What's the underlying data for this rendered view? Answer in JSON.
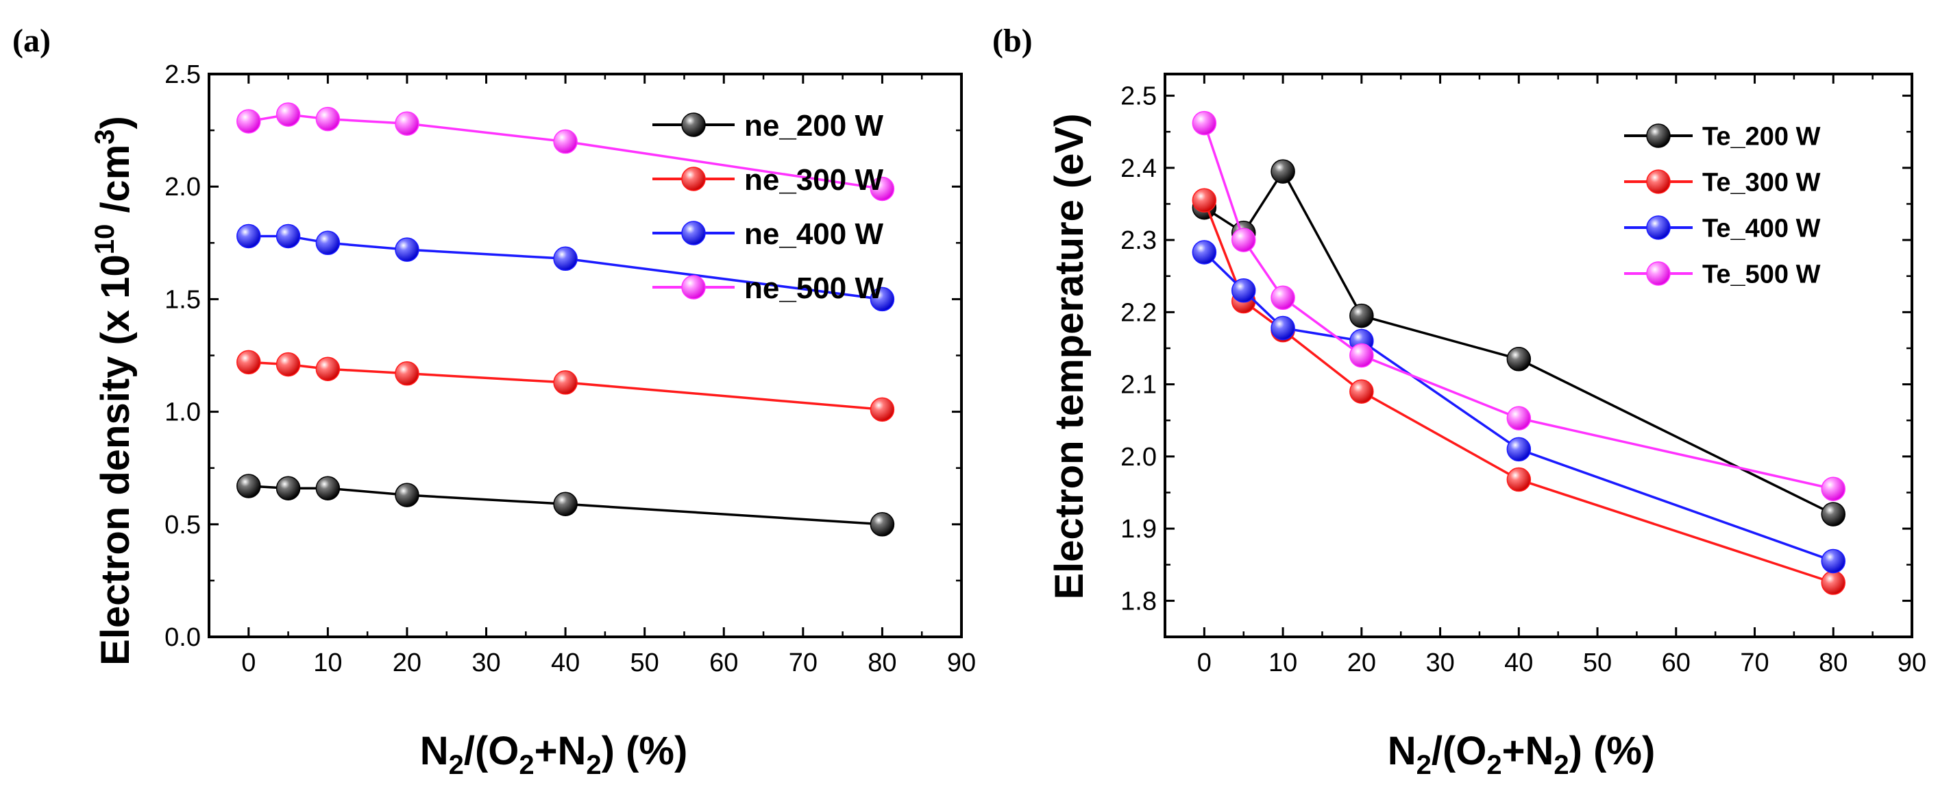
{
  "colors": {
    "black": "#000000",
    "red": "#ff1a1a",
    "blue": "#1a1aff",
    "magenta": "#ff33ff"
  },
  "chart_data": [
    {
      "type": "line",
      "panel_label": "(a)",
      "title": "",
      "xlabel": {
        "main": "N",
        "s1": "2",
        "m1": "/(O",
        "s2": "2",
        "m2": "+N",
        "s3": "2",
        "m3": ") (%)"
      },
      "ylabel": {
        "main": "Electron density (x 10",
        "sup1": "10",
        "mid": " /cm",
        "sup2": "3",
        "end": ")"
      },
      "xlim": [
        -5,
        90
      ],
      "ylim": [
        0,
        2.5
      ],
      "xticks": [
        0,
        10,
        20,
        30,
        40,
        50,
        60,
        70,
        80,
        90
      ],
      "yticks": [
        0.0,
        0.5,
        1.0,
        1.5,
        2.0,
        2.5
      ],
      "ytick_labels": [
        "0.0",
        "0.5",
        "1.0",
        "1.5",
        "2.0",
        "2.5"
      ],
      "legend_position": "top-right",
      "x": [
        0,
        5,
        10,
        20,
        40,
        80
      ],
      "series": [
        {
          "name": "ne_200 W",
          "color": "#000000",
          "values": [
            0.67,
            0.66,
            0.66,
            0.63,
            0.59,
            0.5
          ]
        },
        {
          "name": "ne_300 W",
          "color": "#ff1a1a",
          "values": [
            1.22,
            1.21,
            1.19,
            1.17,
            1.13,
            1.01
          ]
        },
        {
          "name": "ne_400 W",
          "color": "#1a1aff",
          "values": [
            1.78,
            1.78,
            1.75,
            1.72,
            1.68,
            1.5
          ]
        },
        {
          "name": "ne_500 W",
          "color": "#ff33ff",
          "values": [
            2.29,
            2.32,
            2.3,
            2.28,
            2.2,
            1.99
          ]
        }
      ]
    },
    {
      "type": "line",
      "panel_label": "(b)",
      "title": "",
      "xlabel": {
        "main": "N",
        "s1": "2",
        "m1": "/(O",
        "s2": "2",
        "m2": "+N",
        "s3": "2",
        "m3": ") (%)"
      },
      "ylabel": {
        "main": "Electron temperature (eV)"
      },
      "xlim": [
        -5,
        90
      ],
      "ylim": [
        1.75,
        2.53
      ],
      "xticks": [
        0,
        10,
        20,
        30,
        40,
        50,
        60,
        70,
        80,
        90
      ],
      "yticks": [
        1.8,
        1.9,
        2.0,
        2.1,
        2.2,
        2.3,
        2.4,
        2.5
      ],
      "ytick_labels": [
        "1.8",
        "1.9",
        "2.0",
        "2.1",
        "2.2",
        "2.3",
        "2.4",
        "2.5"
      ],
      "legend_position": "top-right",
      "x": [
        0,
        5,
        10,
        20,
        40,
        80
      ],
      "series": [
        {
          "name": "Te_200 W",
          "color": "#000000",
          "values": [
            2.345,
            2.31,
            2.395,
            2.195,
            2.135,
            1.92
          ]
        },
        {
          "name": "Te_300 W",
          "color": "#ff1a1a",
          "values": [
            2.355,
            2.215,
            2.175,
            2.09,
            1.968,
            1.825
          ]
        },
        {
          "name": "Te_400 W",
          "color": "#1a1aff",
          "values": [
            2.283,
            2.23,
            2.178,
            2.16,
            2.01,
            1.855
          ]
        },
        {
          "name": "Te_500 W",
          "color": "#ff33ff",
          "values": [
            2.462,
            2.3,
            2.22,
            2.14,
            2.053,
            1.955
          ]
        }
      ]
    }
  ]
}
